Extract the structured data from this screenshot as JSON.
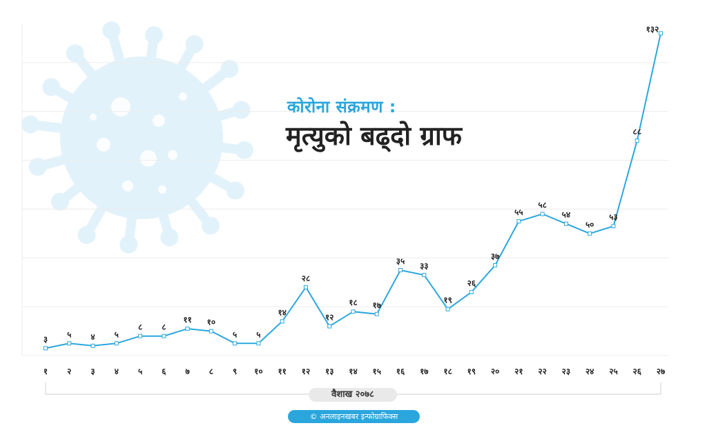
{
  "colors": {
    "line": "#2aa6dd",
    "title_accent": "#2aa6dd",
    "virus": "#e2f2fb",
    "grid": "#ececec",
    "badge": "#2aa6dd"
  },
  "title": {
    "line1": "कोरोना संक्रमण :",
    "line2": "मृत्युको बढ्दो ग्राफ"
  },
  "chart_data": {
    "type": "line",
    "title": "कोरोना संक्रमण : मृत्युको बढ्दो ग्राफ",
    "xlabel": "वैशाख २०७८",
    "ylabel": "",
    "ylim": [
      0,
      140
    ],
    "grid": true,
    "legend": "none",
    "x": [
      "१",
      "२",
      "३",
      "४",
      "५",
      "६",
      "७",
      "८",
      "९",
      "१०",
      "११",
      "१२",
      "१३",
      "१४",
      "१५",
      "१६",
      "१७",
      "१८",
      "१९",
      "२०",
      "२१",
      "२२",
      "२३",
      "२४",
      "२५",
      "२६",
      "२७"
    ],
    "values": [
      3,
      5,
      4,
      5,
      8,
      8,
      11,
      10,
      5,
      5,
      14,
      28,
      12,
      18,
      17,
      35,
      33,
      19,
      26,
      37,
      55,
      58,
      54,
      50,
      53,
      88,
      132
    ],
    "data_labels": [
      "३",
      "५",
      "४",
      "५",
      "८",
      "८",
      "११",
      "१०",
      "५",
      "५",
      "१४",
      "२८",
      "१२",
      "१८",
      "१७",
      "३५",
      "३३",
      "१९",
      "२६",
      "३७",
      "५५",
      "५८",
      "५४",
      "५०",
      "५३",
      "८८",
      "१३२"
    ]
  },
  "footer": {
    "credit": "© अनलाइनखबर इन्फोग्राफिक्स"
  }
}
